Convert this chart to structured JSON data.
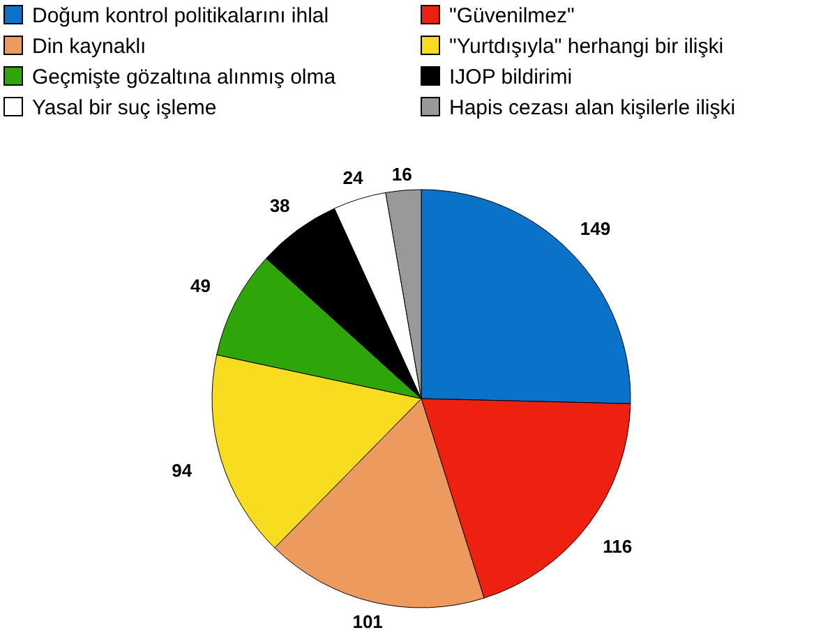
{
  "chart_data": {
    "type": "pie",
    "categories": [
      "Doğum kontrol politikalarını ihlal",
      "\"Güvenilmez\"",
      "Din kaynaklı",
      "\"Yurtdışıyla\" herhangi bir ilişki",
      "Geçmişte gözaltına alınmış olma",
      "IJOP bildirimi",
      "Yasal bir suç işleme",
      "Hapis cezası alan kişilerle ilişki"
    ],
    "values": [
      149,
      116,
      101,
      94,
      49,
      38,
      24,
      16
    ],
    "colors": [
      "#0a72c8",
      "#ee2010",
      "#ec9a5e",
      "#f8dc20",
      "#2ea60a",
      "#000000",
      "#ffffff",
      "#999999"
    ],
    "data_labels": true,
    "legend": "top"
  }
}
